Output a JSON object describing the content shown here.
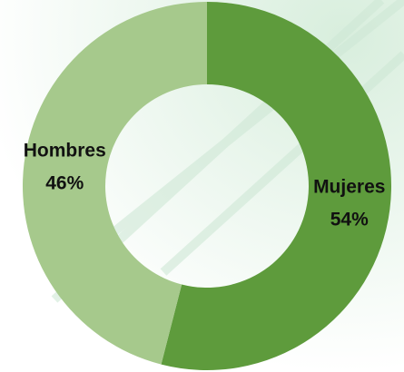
{
  "chart_data": {
    "type": "donut",
    "categories": [
      "Mujeres",
      "Hombres"
    ],
    "values": [
      54,
      46
    ],
    "value_labels": [
      "54%",
      "46%"
    ],
    "colors": [
      "#5e9b3c",
      "#a6c98c"
    ]
  }
}
